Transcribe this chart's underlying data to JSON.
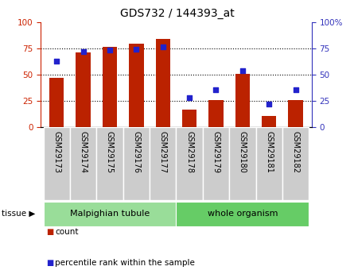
{
  "title": "GDS732 / 144393_at",
  "samples": [
    "GSM29173",
    "GSM29174",
    "GSM29175",
    "GSM29176",
    "GSM29177",
    "GSM29178",
    "GSM29179",
    "GSM29180",
    "GSM29181",
    "GSM29182"
  ],
  "count_values": [
    47,
    71,
    76,
    79,
    84,
    17,
    26,
    51,
    11,
    26
  ],
  "percentile_values": [
    63,
    72,
    73,
    74,
    76,
    28,
    36,
    54,
    22,
    36
  ],
  "bar_color": "#bb2200",
  "dot_color": "#2222cc",
  "group1_label": "Malpighian tubule",
  "group1_color": "#99dd99",
  "group2_label": "whole organism",
  "group2_color": "#66cc66",
  "tissue_label": "tissue",
  "legend_count": "count",
  "legend_percentile": "percentile rank within the sample",
  "ylim": [
    0,
    100
  ],
  "grid_values": [
    25,
    50,
    75
  ],
  "left_yticks": [
    0,
    25,
    50,
    75,
    100
  ],
  "right_ytick_labels": [
    "0",
    "25",
    "50",
    "75",
    "100%"
  ],
  "tick_color_left": "#cc2200",
  "tick_color_right": "#3333bb",
  "bar_width": 0.55,
  "dot_size": 22,
  "title_fontsize": 10,
  "axis_tick_fontsize": 7.5,
  "label_fontsize": 7,
  "group_fontsize": 8,
  "legend_fontsize": 7.5
}
